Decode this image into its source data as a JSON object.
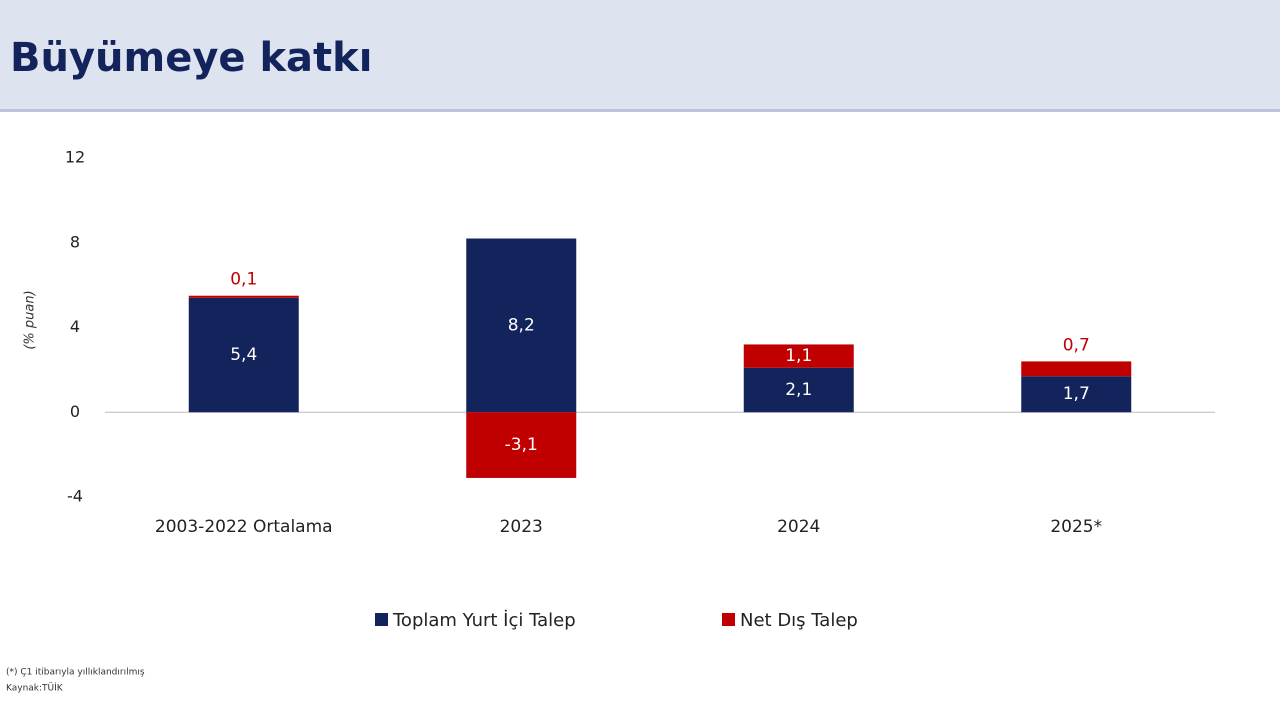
{
  "chart_data": {
    "type": "bar",
    "stacked": true,
    "title": "Büyümeye katkı",
    "y_label": "(% puan)",
    "categories": [
      "2003-2022 Ortalama",
      "2023",
      "2024",
      "2025*"
    ],
    "series": [
      {
        "name": "Toplam Yurt İçi Talep",
        "color": "#13235b",
        "values": [
          5.4,
          8.2,
          2.1,
          1.7
        ],
        "value_labels": [
          "5,4",
          "8,2",
          "2,1",
          "1,7"
        ]
      },
      {
        "name": "Net Dış Talep",
        "color": "#c00000",
        "values": [
          0.1,
          -3.1,
          1.1,
          0.7
        ],
        "value_labels": [
          "0,1",
          "-3,1",
          "1,1",
          "0,7"
        ]
      }
    ],
    "ylim": [
      -4,
      12
    ],
    "yticks": [
      -4,
      0,
      4,
      8,
      12
    ],
    "grid": false,
    "footnote": "(*) Ç1 itibarıyla yıllıklandırılmış",
    "source": "Kaynak:TÜİK"
  }
}
